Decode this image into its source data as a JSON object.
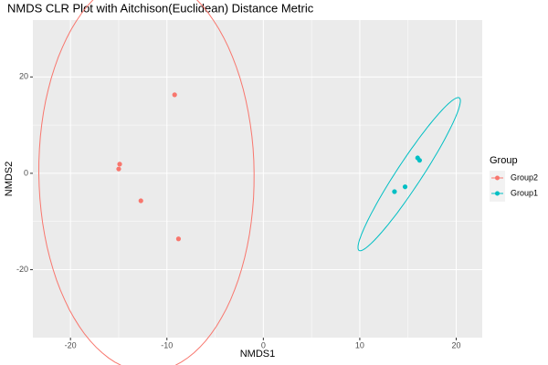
{
  "chart_data": {
    "type": "scatter",
    "title": "NMDS CLR Plot with Aitchison(Euclidean) Distance Metric",
    "x_label": "NMDS1",
    "y_label": "NMDS2",
    "legend_title": "Group",
    "grid": true,
    "ellipses": true,
    "xlim": [
      -23.9,
      22.7
    ],
    "xticks": [
      -20,
      -10,
      0,
      10,
      20
    ],
    "ylim": [
      -34.1,
      31.8
    ],
    "yticks": [
      -20,
      0,
      20
    ],
    "series": [
      {
        "name": "Group2",
        "color": "#F8766D",
        "x": [
          -9.2,
          -14.9,
          -15.0,
          -12.7,
          -8.8
        ],
        "values": [
          16.3,
          1.9,
          0.9,
          -5.7,
          -13.6
        ]
      },
      {
        "name": "Group1",
        "color": "#00BFC4",
        "x": [
          16.0,
          16.2,
          14.7,
          13.6
        ],
        "values": [
          3.2,
          2.7,
          -2.8,
          -3.8
        ]
      }
    ]
  }
}
